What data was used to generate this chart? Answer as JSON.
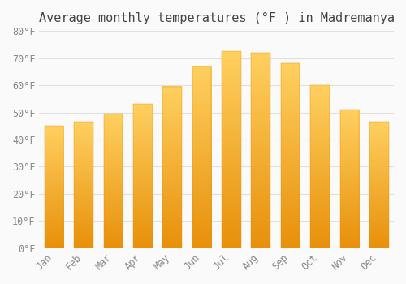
{
  "title": "Average monthly temperatures (°F ) in Madremanya",
  "months": [
    "Jan",
    "Feb",
    "Mar",
    "Apr",
    "May",
    "Jun",
    "Jul",
    "Aug",
    "Sep",
    "Oct",
    "Nov",
    "Dec"
  ],
  "values": [
    45,
    46.5,
    49.5,
    53,
    59.5,
    67,
    72.5,
    72,
    68,
    60,
    51,
    46.5
  ],
  "bar_color_main": "#FFA500",
  "bar_color_gradient_top": "#FFD700",
  "ylim": [
    0,
    80
  ],
  "yticks": [
    0,
    10,
    20,
    30,
    40,
    50,
    60,
    70,
    80
  ],
  "ytick_labels": [
    "0°F",
    "10°F",
    "20°F",
    "30°F",
    "40°F",
    "50°F",
    "60°F",
    "70°F",
    "80°F"
  ],
  "background_color": "#FAFAFA",
  "grid_color": "#E0E0E0",
  "title_fontsize": 11,
  "tick_fontsize": 8.5,
  "bar_edge_color": "none"
}
